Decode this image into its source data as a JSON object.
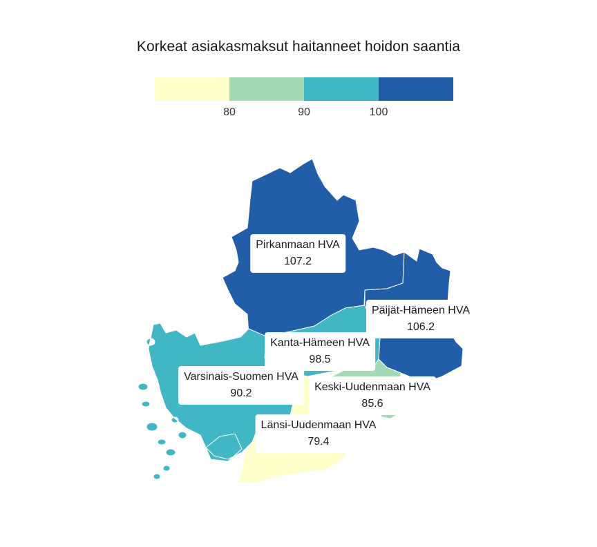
{
  "title": "Korkeat asiakasmaksut haitanneet hoidon saantia",
  "legend": {
    "colors": [
      "#ffffcc",
      "#a1dab4",
      "#41b6c4",
      "#225ea8"
    ],
    "ticks": [
      "80",
      "90",
      "100"
    ]
  },
  "regions": [
    {
      "name": "Pirkanmaan HVA",
      "value": "107.2",
      "color": "#225ea8"
    },
    {
      "name": "Päijät-Hämeen HVA",
      "value": "106.2",
      "color": "#225ea8"
    },
    {
      "name": "Kanta-Hämeen HVA",
      "value": "98.5",
      "color": "#41b6c4"
    },
    {
      "name": "Varsinais-Suomen HVA",
      "value": "90.2",
      "color": "#41b6c4"
    },
    {
      "name": "Keski-Uudenmaan HVA",
      "value": "85.6",
      "color": "#a1dab4"
    },
    {
      "name": "Länsi-Uudenmaan HVA",
      "value": "79.4",
      "color": "#ffffcc"
    }
  ]
}
